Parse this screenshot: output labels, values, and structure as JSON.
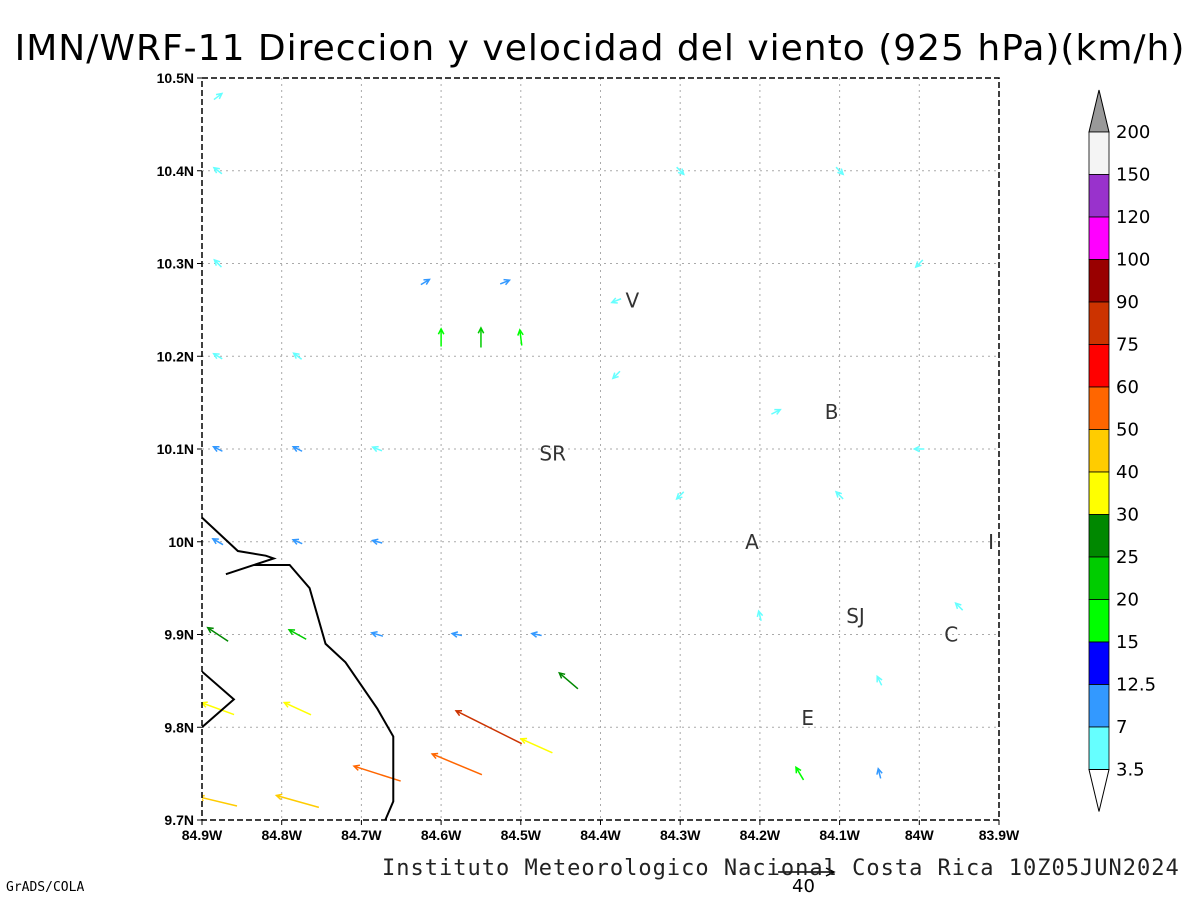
{
  "title": "IMN/WRF-11 Direccion y velocidad del viento (925 hPa)(km/h)",
  "footer": "Instituto Meteorologico Nacional Costa Rica 10Z05JUN2024",
  "brand": "GrADS/COLA",
  "reference_vector": {
    "value": "40"
  },
  "axes": {
    "x_labels": [
      "84.9W",
      "84.8W",
      "84.7W",
      "84.6W",
      "84.5W",
      "84.4W",
      "84.3W",
      "84.2W",
      "84.1W",
      "84W",
      "83.9W"
    ],
    "y_labels": [
      "10.5N",
      "10.4N",
      "10.3N",
      "10.2N",
      "10.1N",
      "10N",
      "9.9N",
      "9.8N",
      "9.7N"
    ],
    "lon_range": [
      -84.9,
      -83.9
    ],
    "lat_range": [
      9.7,
      10.5
    ]
  },
  "stations": [
    {
      "name": "V",
      "lon": -84.36,
      "lat": 10.26
    },
    {
      "name": "B",
      "lon": -84.11,
      "lat": 10.14
    },
    {
      "name": "SR",
      "lon": -84.46,
      "lat": 10.095
    },
    {
      "name": "A",
      "lon": -84.21,
      "lat": 10.0
    },
    {
      "name": "I",
      "lon": -83.91,
      "lat": 10.0
    },
    {
      "name": "SJ",
      "lon": -84.08,
      "lat": 9.92
    },
    {
      "name": "C",
      "lon": -83.96,
      "lat": 9.9
    },
    {
      "name": "E",
      "lon": -84.14,
      "lat": 9.81
    }
  ],
  "colorbar": {
    "labels": [
      "200",
      "150",
      "120",
      "100",
      "90",
      "75",
      "60",
      "50",
      "40",
      "30",
      "25",
      "20",
      "15",
      "12.5",
      "7",
      "3.5"
    ],
    "colors": [
      "#f4f4f4",
      "#9932cc",
      "#ff00ff",
      "#990000",
      "#cc3300",
      "#ff0000",
      "#ff6600",
      "#ffcc00",
      "#ffff00",
      "#008800",
      "#00cc00",
      "#00ff00",
      "#0000ff",
      "#3399ff",
      "#66ffff"
    ],
    "top_color": "#999999"
  },
  "coastline": [
    [
      -84.9,
      10.026
    ],
    [
      -84.855,
      9.99
    ],
    [
      -84.82,
      9.985
    ],
    [
      -84.81,
      9.982
    ],
    [
      -84.87,
      9.965
    ],
    [
      -84.835,
      9.975
    ],
    [
      -84.79,
      9.975
    ],
    [
      -84.765,
      9.95
    ],
    [
      -84.745,
      9.89
    ],
    [
      -84.72,
      9.87
    ],
    [
      -84.68,
      9.82
    ],
    [
      -84.66,
      9.79
    ],
    [
      -84.66,
      9.72
    ],
    [
      -84.67,
      9.7
    ]
  ],
  "coastline2": [
    [
      -84.9,
      9.8
    ],
    [
      -84.86,
      9.83
    ],
    [
      -84.9,
      9.86
    ]
  ],
  "chart_data": {
    "type": "vector-field",
    "title": "IMN/WRF-11 Direccion y velocidad del viento (925 hPa)(km/h)",
    "xlabel": "",
    "ylabel": "",
    "lon_range": [
      -84.9,
      -83.9
    ],
    "lat_range": [
      9.7,
      10.5
    ],
    "grid": true,
    "units": "km/h",
    "vectors": [
      {
        "lon": -84.88,
        "lat": 9.72,
        "u": -25,
        "v": 6,
        "speed": 40
      },
      {
        "lon": -84.78,
        "lat": 9.72,
        "u": -25,
        "v": 7,
        "speed": 45
      },
      {
        "lon": -84.68,
        "lat": 9.75,
        "u": -25,
        "v": 8,
        "speed": 50
      },
      {
        "lon": -84.58,
        "lat": 9.76,
        "u": -24,
        "v": 10,
        "speed": 55
      },
      {
        "lon": -84.54,
        "lat": 9.8,
        "u": -20,
        "v": 10,
        "speed": 75
      },
      {
        "lon": -84.48,
        "lat": 9.78,
        "u": -18,
        "v": 8,
        "speed": 35
      },
      {
        "lon": -84.88,
        "lat": 9.82,
        "u": -22,
        "v": 8,
        "speed": 35
      },
      {
        "lon": -84.78,
        "lat": 9.82,
        "u": -22,
        "v": 10,
        "speed": 30
      },
      {
        "lon": -84.88,
        "lat": 9.9,
        "u": -18,
        "v": 12,
        "speed": 25
      },
      {
        "lon": -84.78,
        "lat": 9.9,
        "u": -18,
        "v": 10,
        "speed": 20
      },
      {
        "lon": -84.68,
        "lat": 9.9,
        "u": -20,
        "v": 6,
        "speed": 12
      },
      {
        "lon": -84.58,
        "lat": 9.9,
        "u": -20,
        "v": 4,
        "speed": 8
      },
      {
        "lon": -84.48,
        "lat": 9.9,
        "u": -15,
        "v": 3,
        "speed": 7
      },
      {
        "lon": -84.44,
        "lat": 9.85,
        "u": -14,
        "v": 12,
        "speed": 25
      },
      {
        "lon": -84.88,
        "lat": 10.0,
        "u": -14,
        "v": 8,
        "speed": 12
      },
      {
        "lon": -84.78,
        "lat": 10.0,
        "u": -14,
        "v": 6,
        "speed": 8
      },
      {
        "lon": -84.68,
        "lat": 10.0,
        "u": -16,
        "v": 4,
        "speed": 7
      },
      {
        "lon": -84.88,
        "lat": 10.1,
        "u": -12,
        "v": 6,
        "speed": 7
      },
      {
        "lon": -84.78,
        "lat": 10.1,
        "u": -12,
        "v": 6,
        "speed": 7
      },
      {
        "lon": -84.68,
        "lat": 10.1,
        "u": -10,
        "v": 4,
        "speed": 6
      },
      {
        "lon": -84.88,
        "lat": 10.2,
        "u": -10,
        "v": 6,
        "speed": 6
      },
      {
        "lon": -84.78,
        "lat": 10.2,
        "u": -8,
        "v": 6,
        "speed": 5
      },
      {
        "lon": -84.6,
        "lat": 10.22,
        "u": 0,
        "v": 16,
        "speed": 18
      },
      {
        "lon": -84.55,
        "lat": 10.22,
        "u": 0,
        "v": 18,
        "speed": 20
      },
      {
        "lon": -84.5,
        "lat": 10.22,
        "u": -2,
        "v": 16,
        "speed": 16
      },
      {
        "lon": -84.62,
        "lat": 10.28,
        "u": 10,
        "v": 6,
        "speed": 8
      },
      {
        "lon": -84.52,
        "lat": 10.28,
        "u": 10,
        "v": 4,
        "speed": 7
      },
      {
        "lon": -84.88,
        "lat": 10.3,
        "u": -8,
        "v": 8,
        "speed": 5
      },
      {
        "lon": -84.88,
        "lat": 10.4,
        "u": -8,
        "v": 6,
        "speed": 5
      },
      {
        "lon": -84.88,
        "lat": 10.48,
        "u": 8,
        "v": 6,
        "speed": 5
      },
      {
        "lon": -84.38,
        "lat": 10.26,
        "u": -10,
        "v": -4,
        "speed": 6
      },
      {
        "lon": -84.38,
        "lat": 10.18,
        "u": -6,
        "v": -6,
        "speed": 5
      },
      {
        "lon": -84.18,
        "lat": 10.14,
        "u": 8,
        "v": 4,
        "speed": 6
      },
      {
        "lon": -84.2,
        "lat": 9.92,
        "u": -2,
        "v": 8,
        "speed": 5
      },
      {
        "lon": -84.05,
        "lat": 9.85,
        "u": -4,
        "v": 8,
        "speed": 5
      },
      {
        "lon": -84.15,
        "lat": 9.75,
        "u": -6,
        "v": 10,
        "speed": 15
      },
      {
        "lon": -84.05,
        "lat": 9.75,
        "u": -2,
        "v": 8,
        "speed": 10
      },
      {
        "lon": -83.95,
        "lat": 9.93,
        "u": -6,
        "v": 6,
        "speed": 6
      },
      {
        "lon": -84.3,
        "lat": 10.4,
        "u": 2,
        "v": -2,
        "speed": 3
      },
      {
        "lon": -84.1,
        "lat": 10.4,
        "u": 2,
        "v": -2,
        "speed": 3
      },
      {
        "lon": -84.0,
        "lat": 10.3,
        "u": -2,
        "v": -2,
        "speed": 3
      },
      {
        "lon": -84.3,
        "lat": 10.05,
        "u": -2,
        "v": -2,
        "speed": 3
      },
      {
        "lon": -84.1,
        "lat": 10.05,
        "u": -2,
        "v": 2,
        "speed": 3
      },
      {
        "lon": -84.0,
        "lat": 10.1,
        "u": -2,
        "v": 0,
        "speed": 3
      }
    ]
  }
}
